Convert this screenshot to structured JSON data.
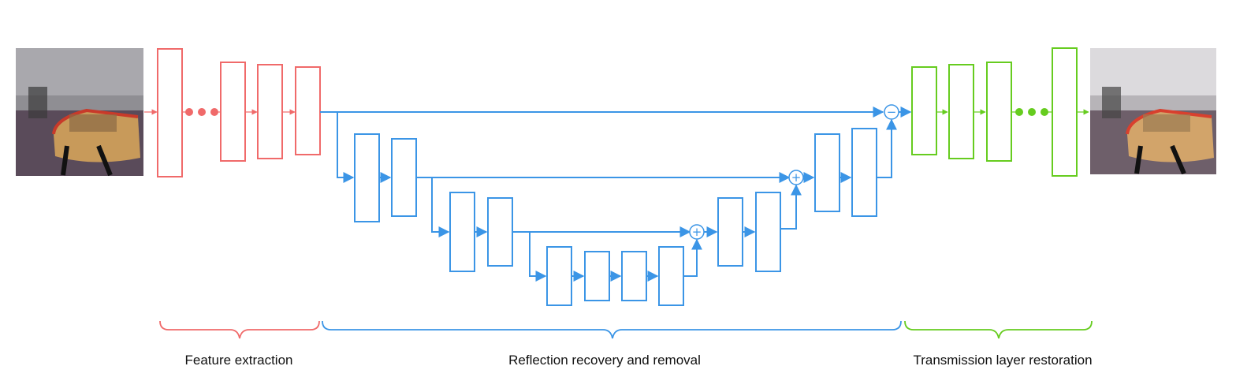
{
  "colors": {
    "feature": "#f06a6a",
    "reflection": "#3b95e6",
    "transmission": "#66cc1f",
    "text": "#111111"
  },
  "images": {
    "input": "input-photo-with-reflection",
    "output": "restored-transmission-photo"
  },
  "operators": {
    "add": "+",
    "subtract": "−"
  },
  "sections": {
    "feature_extraction": "Feature extraction",
    "reflection_recovery": "Reflection recovery and removal",
    "transmission_restoration": "Transmission layer restoration"
  }
}
